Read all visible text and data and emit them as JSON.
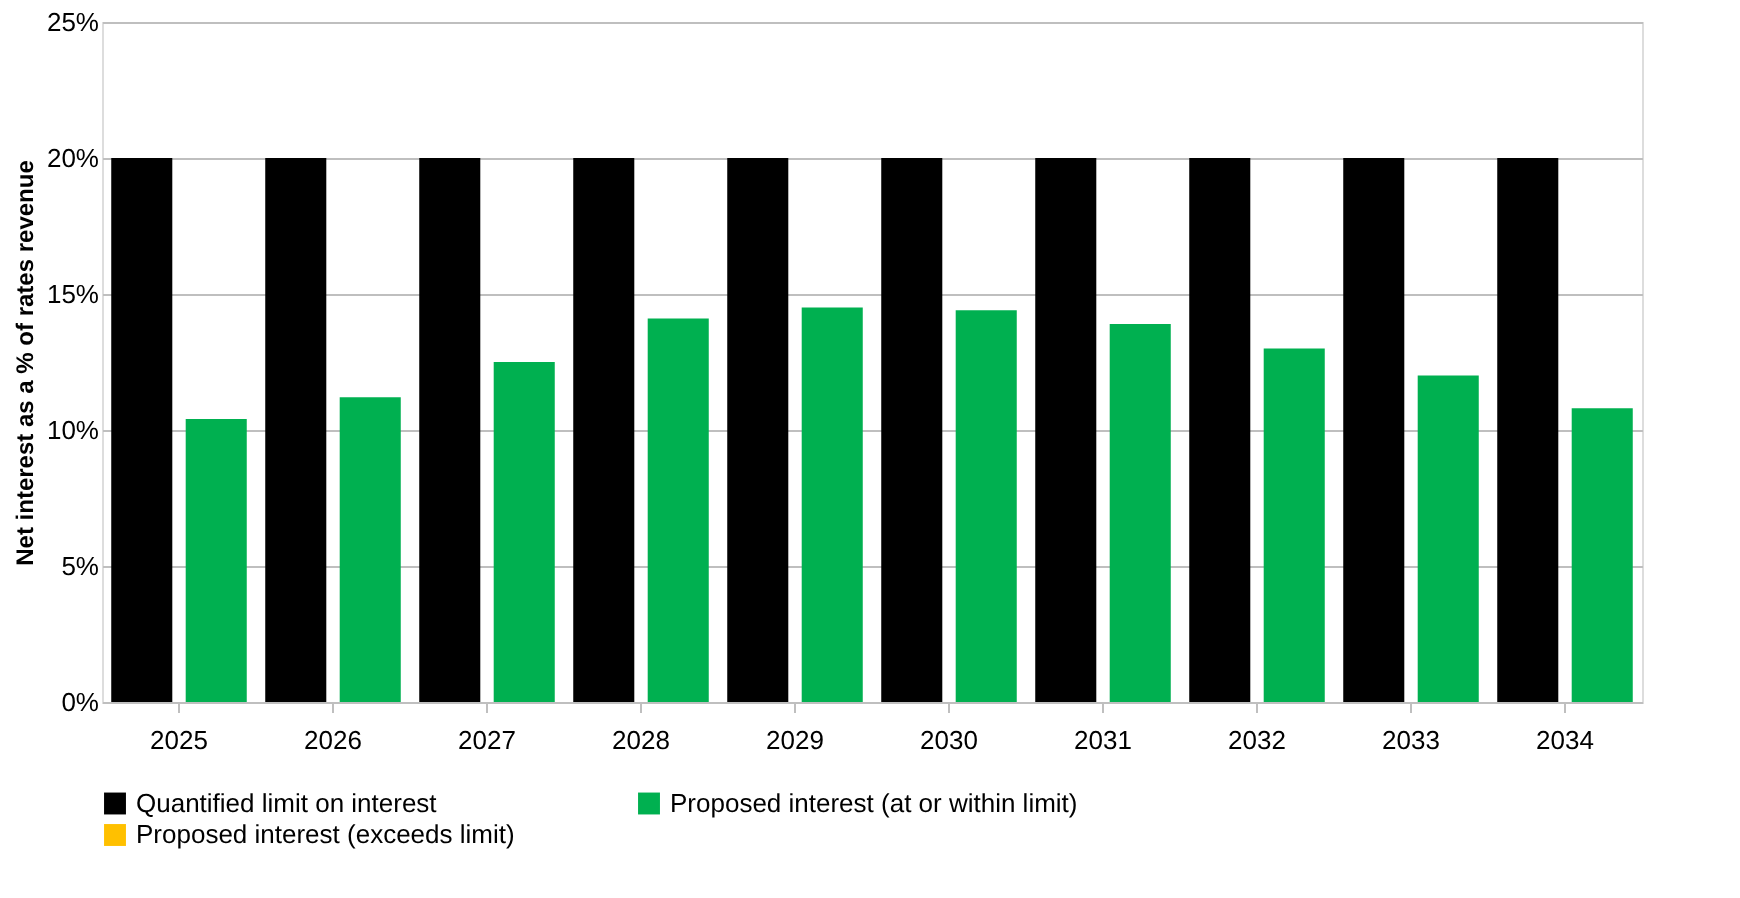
{
  "chart_data": {
    "type": "bar",
    "ylabel": "Net interest as a % of rates revenue",
    "categories": [
      "2025",
      "2026",
      "2027",
      "2028",
      "2029",
      "2030",
      "2031",
      "2032",
      "2033",
      "2034"
    ],
    "series": [
      {
        "name": "Quantified limit on interest",
        "color": "#000000",
        "values": [
          20,
          20,
          20,
          20,
          20,
          20,
          20,
          20,
          20,
          20
        ]
      },
      {
        "name": "Proposed interest (at or within limit)",
        "color": "#00b050",
        "values": [
          10.4,
          11.2,
          12.5,
          14.1,
          14.5,
          14.4,
          13.9,
          13.0,
          12.0,
          10.8
        ]
      },
      {
        "name": "Proposed interest (exceeds limit)",
        "color": "#ffc000",
        "values": [
          null,
          null,
          null,
          null,
          null,
          null,
          null,
          null,
          null,
          null
        ]
      }
    ],
    "ylim": [
      0,
      25
    ],
    "yticks": [
      {
        "value": 0,
        "label": "0%"
      },
      {
        "value": 5,
        "label": "5%"
      },
      {
        "value": 10,
        "label": "10%"
      },
      {
        "value": 15,
        "label": "15%"
      },
      {
        "value": 20,
        "label": "20%"
      },
      {
        "value": 25,
        "label": "25%"
      }
    ],
    "grid": "y",
    "legend": "bottom"
  }
}
